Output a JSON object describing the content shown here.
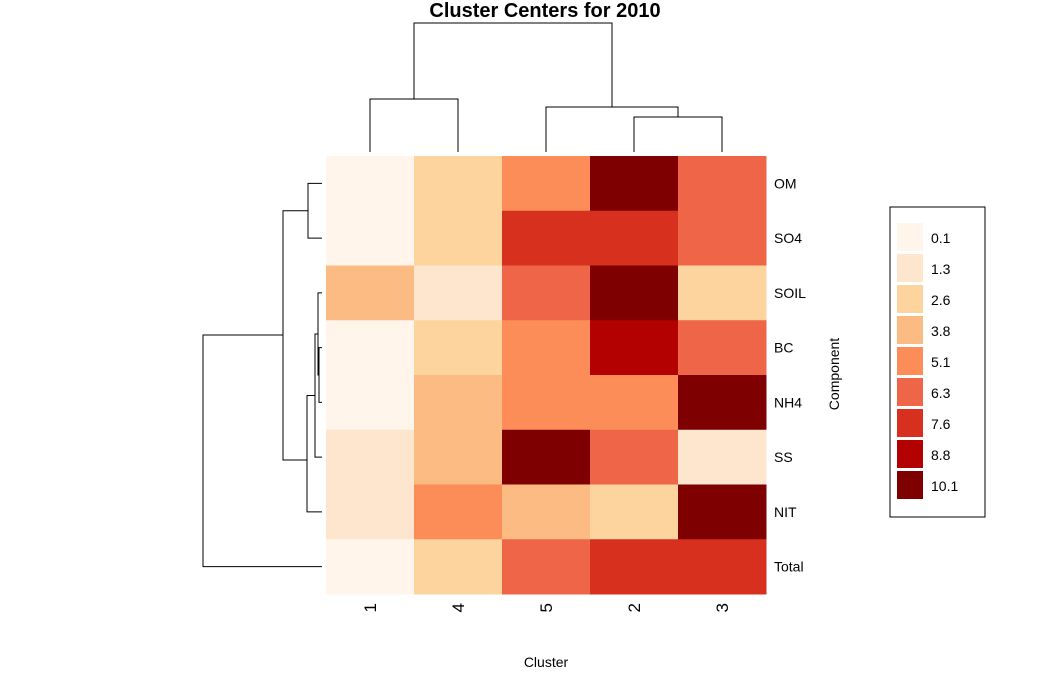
{
  "chart_data": {
    "type": "heatmap",
    "title": "Cluster Centers for 2010",
    "xlabel": "Cluster",
    "ylabel": "Component",
    "columns": [
      "1",
      "4",
      "5",
      "2",
      "3"
    ],
    "rows": [
      "OM",
      "SO4",
      "SOIL",
      "BC",
      "NH4",
      "SS",
      "NIT",
      "Total"
    ],
    "values": [
      [
        0.1,
        2.6,
        5.1,
        10.1,
        6.3
      ],
      [
        0.1,
        2.6,
        7.6,
        7.6,
        6.3
      ],
      [
        3.8,
        1.3,
        6.3,
        10.1,
        2.6
      ],
      [
        0.1,
        2.6,
        5.1,
        8.8,
        6.3
      ],
      [
        0.1,
        3.8,
        5.1,
        5.1,
        10.1
      ],
      [
        1.3,
        3.8,
        10.1,
        6.3,
        1.3
      ],
      [
        1.3,
        5.1,
        3.8,
        2.6,
        10.1
      ],
      [
        0.1,
        2.6,
        6.3,
        7.6,
        7.6
      ]
    ],
    "legend": {
      "position": "right",
      "levels": [
        {
          "label": "0.1",
          "color": "#FFF5EB"
        },
        {
          "label": "1.3",
          "color": "#FEE6CE"
        },
        {
          "label": "2.6",
          "color": "#FDD49E"
        },
        {
          "label": "3.8",
          "color": "#FDBB84"
        },
        {
          "label": "5.1",
          "color": "#FC8D59"
        },
        {
          "label": "6.3",
          "color": "#EF6548"
        },
        {
          "label": "7.6",
          "color": "#D7301F"
        },
        {
          "label": "8.8",
          "color": "#B30000"
        },
        {
          "label": "10.1",
          "color": "#7F0000"
        }
      ]
    },
    "row_dendrogram": true,
    "column_dendrogram": true
  }
}
